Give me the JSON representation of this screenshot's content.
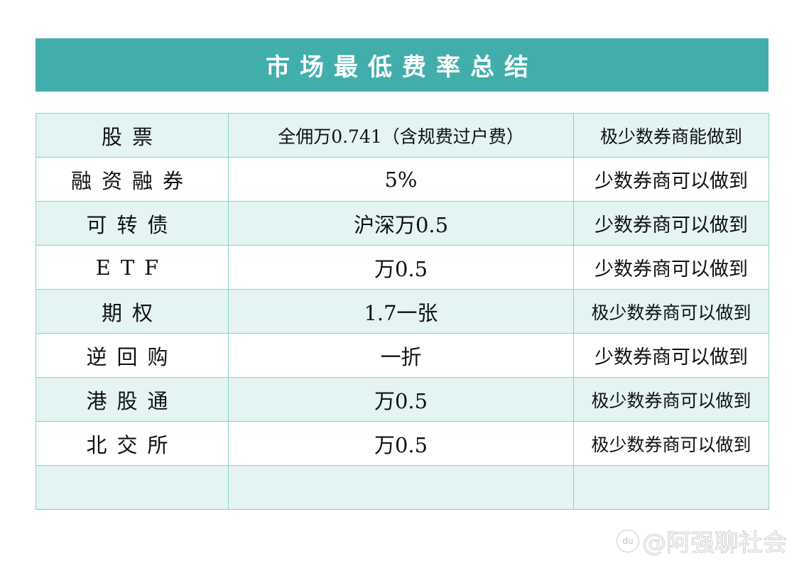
{
  "title": "市场最低费率总结",
  "rows": [
    {
      "market": "股票",
      "fee": "全佣万0.741（含规费过户费）",
      "note": "极少数券商能做到"
    },
    {
      "market": "融资融券",
      "fee": "5%",
      "note": "少数券商可以做到"
    },
    {
      "market": "可转债",
      "fee": "沪深万0.5",
      "note": "少数券商可以做到"
    },
    {
      "market": "ETF",
      "fee": "万0.5",
      "note": "少数券商可以做到"
    },
    {
      "market": "期权",
      "fee": "1.7一张",
      "note": "极少数券商可以做到"
    },
    {
      "market": "逆回购",
      "fee": "一折",
      "note": "少数券商可以做到"
    },
    {
      "market": "港股通",
      "fee": "万0.5",
      "note": "极少数券商可以做到"
    },
    {
      "market": "北交所",
      "fee": "万0.5",
      "note": "极少数券商可以做到"
    },
    {
      "market": "",
      "fee": "",
      "note": ""
    }
  ],
  "watermark": "@阿强聊社会",
  "watermark_logo": "du",
  "colors": {
    "banner": "#41aeac",
    "row_tint": "#e3f4f3",
    "border": "#8ccfcc"
  }
}
